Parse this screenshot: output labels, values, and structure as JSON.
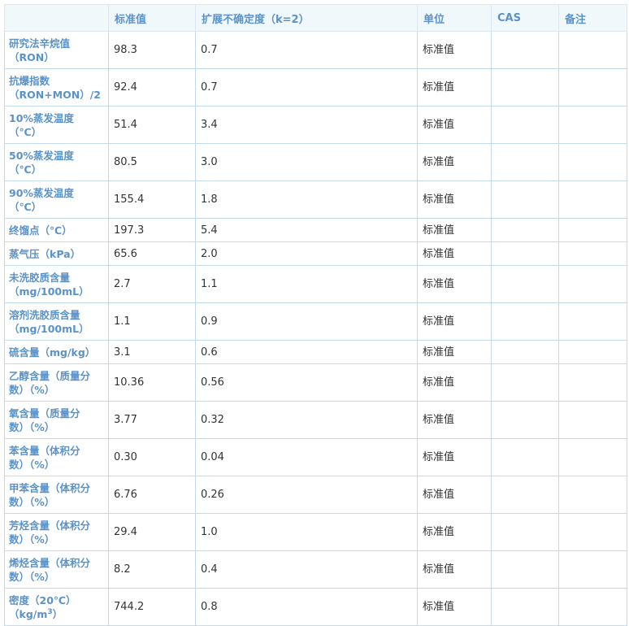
{
  "headers": [
    "",
    "标准值",
    "扩展不确定度（k=2）",
    "单位",
    "CAS",
    "备注"
  ],
  "rows": [
    {
      "name1": "研究法辛烷值",
      "name2": "（RON）",
      "value": "98.3",
      "unc": "0.7",
      "unit": "标准值",
      "lines": 2
    },
    {
      "name1": "抗爆指数",
      "name2": "（RON+MON）/2",
      "value": "92.4",
      "unc": "0.7",
      "unit": "标准值",
      "lines": 2
    },
    {
      "name1": "10%蒸发温度",
      "name2": "（℃）",
      "value": "51.4",
      "unc": "3.4",
      "unit": "标准值",
      "lines": 2
    },
    {
      "name1": "50%蒸发温度",
      "name2": "（℃）",
      "value": "80.5",
      "unc": "3.0",
      "unit": "标准值",
      "lines": 2
    },
    {
      "name1": "90%蒸发温度",
      "name2": "（℃）",
      "value": "155.4",
      "unc": "1.8",
      "unit": "标准值",
      "lines": 2
    },
    {
      "name1": "终馏点（℃）",
      "name2": "",
      "value": "197.3",
      "unc": "5.4",
      "unit": "标准值",
      "lines": 1
    },
    {
      "name1": "蒸气压（kPa）",
      "name2": "",
      "value": "65.6",
      "unc": "2.0",
      "unit": "标准值",
      "lines": 1
    },
    {
      "name1": "未洗胶质含量",
      "name2": "（mg/100mL）",
      "value": "2.7",
      "unc": "1.1",
      "unit": "标准值",
      "lines": 2
    },
    {
      "name1": "溶剂洗胶质含量",
      "name2": "（mg/100mL）",
      "value": "1.1",
      "unc": "0.9",
      "unit": "标准值",
      "lines": 2
    },
    {
      "name1": "硫含量（mg/kg）",
      "name2": "",
      "value": "3.1",
      "unc": "0.6",
      "unit": "标准值",
      "lines": 1
    },
    {
      "name1": "乙醇含量（质量分",
      "name2": "数）（%）",
      "value": "10.36",
      "unc": "0.56",
      "unit": "标准值",
      "lines": 2
    },
    {
      "name1": "氧含量（质量分",
      "name2": "数）（%）",
      "value": "3.77",
      "unc": "0.32",
      "unit": "标准值",
      "lines": 2
    },
    {
      "name1": "苯含量（体积分",
      "name2": "数）（%）",
      "value": "0.30",
      "unc": "0.04",
      "unit": "标准值",
      "lines": 2
    },
    {
      "name1": "甲苯含量（体积分",
      "name2": "数）（%）",
      "value": "6.76",
      "unc": "0.26",
      "unit": "标准值",
      "lines": 2
    },
    {
      "name1": "芳烃含量（体积分",
      "name2": "数）（%）",
      "value": "29.4",
      "unc": "1.0",
      "unit": "标准值",
      "lines": 2
    },
    {
      "name1": "烯烃含量（体积分",
      "name2": "数）（%）",
      "value": "8.2",
      "unc": "0.4",
      "unit": "标准值",
      "lines": 2
    },
    {
      "name1": "密度（20℃）",
      "name2": "（kg/m",
      "name2_sup": "3",
      "name2_tail": "）",
      "value": "744.2",
      "unc": "0.8",
      "unit": "标准值",
      "lines": 2
    }
  ]
}
